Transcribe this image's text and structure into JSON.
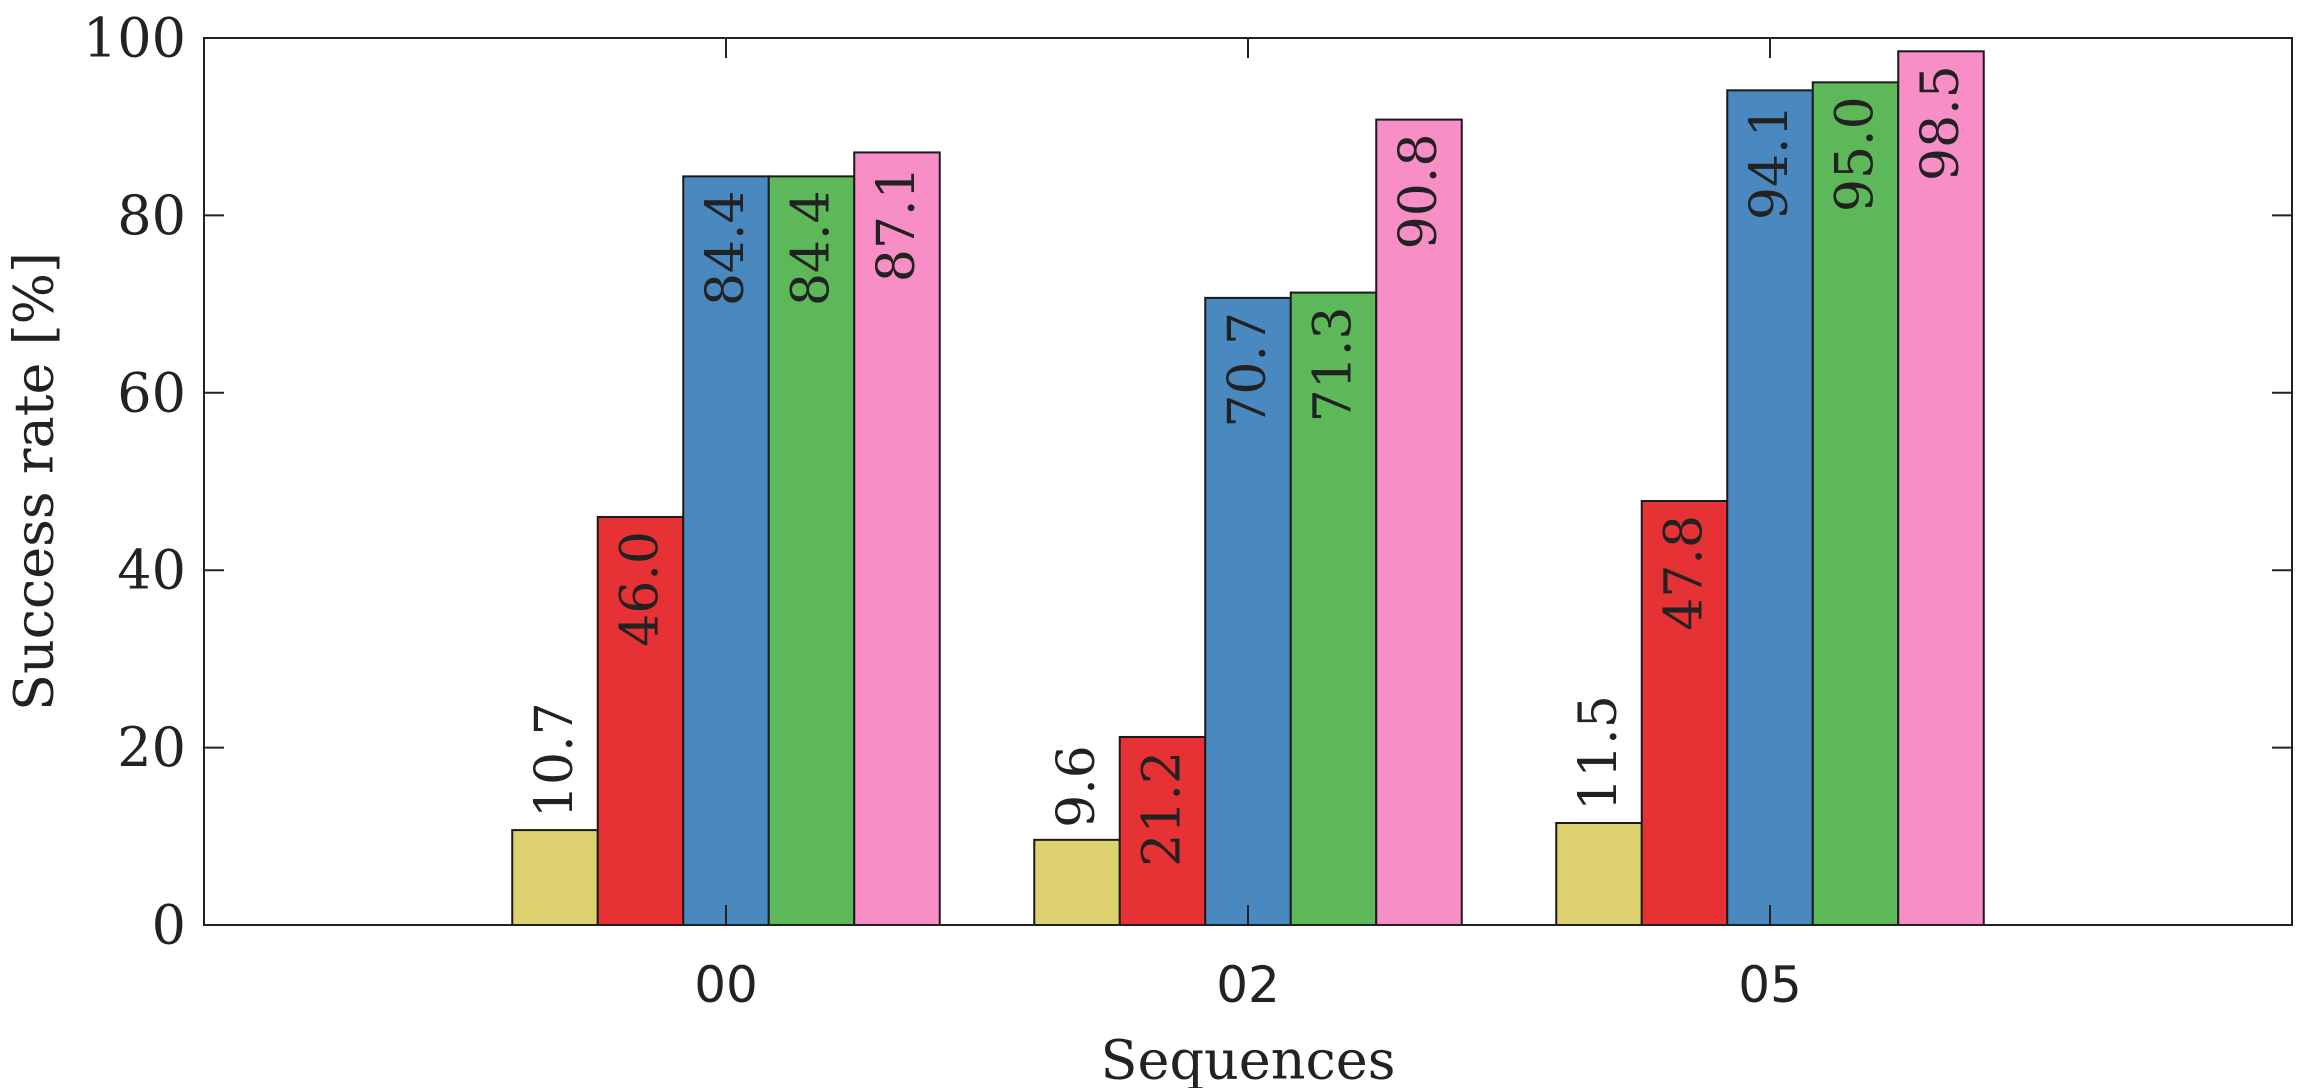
{
  "chart_data": {
    "type": "bar",
    "xlabel": "Sequences",
    "ylabel": "Success rate [%]",
    "ylim": [
      0,
      100
    ],
    "yticks": [
      "0",
      "20",
      "40",
      "60",
      "80",
      "100"
    ],
    "grid": false,
    "categories": [
      "00",
      "02",
      "05"
    ],
    "series": [
      {
        "color": "#DDD06E",
        "values": [
          10.7,
          9.6,
          11.5
        ],
        "labels": [
          "10.7",
          "9.6",
          "11.5"
        ]
      },
      {
        "color": "#E63234",
        "values": [
          46.0,
          21.2,
          47.8
        ],
        "labels": [
          "46.0",
          "21.2",
          "47.8"
        ]
      },
      {
        "color": "#4A89C0",
        "values": [
          84.4,
          70.7,
          94.1
        ],
        "labels": [
          "84.4",
          "70.7",
          "94.1"
        ]
      },
      {
        "color": "#5DB85A",
        "values": [
          84.4,
          71.3,
          95.0
        ],
        "labels": [
          "84.4",
          "71.3",
          "95.0"
        ]
      },
      {
        "color": "#F78EC6",
        "values": [
          87.1,
          90.8,
          98.5
        ],
        "labels": [
          "87.1",
          "90.8",
          "98.5"
        ]
      }
    ]
  }
}
